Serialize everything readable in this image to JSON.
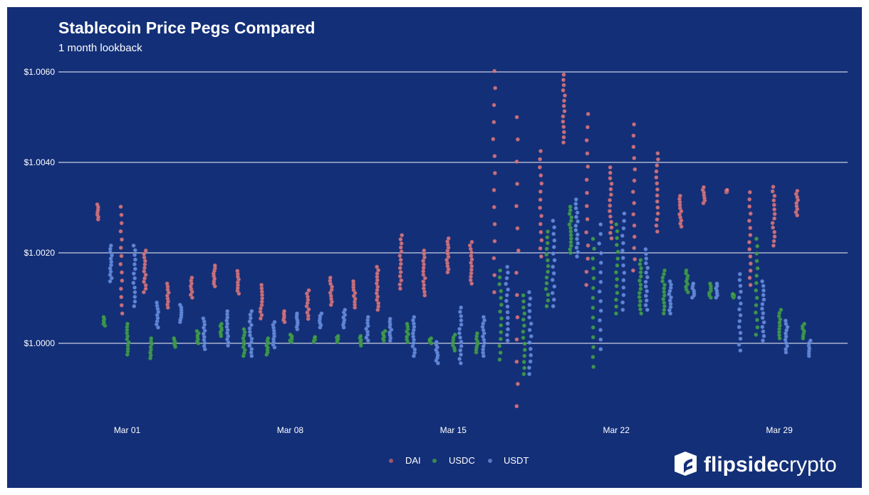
{
  "chart_data": {
    "type": "scatter",
    "title": "Stablecoin Price Pegs Compared",
    "subtitle": "1 month lookback",
    "xlabel": "",
    "ylabel": "",
    "ylim": [
      0.9984,
      1.0062
    ],
    "yticks": [
      {
        "value": 1.006,
        "label": "$1.0060"
      },
      {
        "value": 1.004,
        "label": "$1.0040"
      },
      {
        "value": 1.002,
        "label": "$1.0020"
      },
      {
        "value": 1.0,
        "label": "$1.0000"
      }
    ],
    "xticks": [
      {
        "day": 1,
        "label": "Mar 01"
      },
      {
        "day": 8,
        "label": "Mar 08"
      },
      {
        "day": 15,
        "label": "Mar 15"
      },
      {
        "day": 22,
        "label": "Mar 22"
      },
      {
        "day": 29,
        "label": "Mar 29"
      }
    ],
    "grid": "horizontal",
    "legend_position": "bottom",
    "days": [
      0,
      1,
      2,
      3,
      4,
      5,
      6,
      7,
      8,
      9,
      10,
      11,
      12,
      13,
      14,
      15,
      16,
      17,
      18,
      19,
      20,
      21,
      22,
      23,
      24,
      25,
      26,
      27,
      28,
      29,
      30
    ],
    "series": [
      {
        "name": "DAI",
        "color": "#e47c7f",
        "ranges": [
          [
            1.00274,
            1.00307
          ],
          [
            1.00066,
            1.00302
          ],
          [
            1.00113,
            1.00205
          ],
          [
            1.00079,
            1.00132
          ],
          [
            1.00101,
            1.00145
          ],
          [
            1.00126,
            1.00172
          ],
          [
            1.0011,
            1.0016
          ],
          [
            1.00055,
            1.00129
          ],
          [
            1.00047,
            1.00071
          ],
          [
            1.00054,
            1.00117
          ],
          [
            1.00085,
            1.00145
          ],
          [
            1.00079,
            1.00137
          ],
          [
            1.00074,
            1.00169
          ],
          [
            1.00121,
            1.00239
          ],
          [
            1.00106,
            1.00205
          ],
          [
            1.00157,
            1.00232
          ],
          [
            1.00132,
            1.00224
          ],
          [
            1.00113,
            1.00602
          ],
          [
            0.99861,
            1.005
          ],
          [
            1.00192,
            1.00425
          ],
          [
            1.00444,
            1.00594
          ],
          [
            1.00129,
            1.00507
          ],
          [
            1.00232,
            1.00389
          ],
          [
            1.00161,
            1.00484
          ],
          [
            1.00247,
            1.0042
          ],
          [
            1.00258,
            1.00326
          ],
          [
            1.0031,
            1.00345
          ],
          [
            1.00334,
            1.00339
          ],
          [
            1.00129,
            1.00334
          ],
          [
            1.00216,
            1.00346
          ],
          [
            1.00283,
            1.00337
          ]
        ]
      },
      {
        "name": "USDC",
        "color": "#45a651",
        "ranges": [
          [
            1.00039,
            1.00058
          ],
          [
            0.99975,
            1.00043
          ],
          [
            0.99967,
            1.00011
          ],
          [
            0.99992,
            1.00011
          ],
          [
            1.0,
            1.00027
          ],
          [
            1.00016,
            1.00043
          ],
          [
            0.99972,
            1.00031
          ],
          [
            0.99975,
            1.00011
          ],
          [
            1.00003,
            1.00019
          ],
          [
            1.00003,
            1.00014
          ],
          [
            1.00003,
            1.00016
          ],
          [
            0.99995,
            1.00016
          ],
          [
            1.00006,
            1.00027
          ],
          [
            1.00003,
            1.00043
          ],
          [
            1.0,
            1.00011
          ],
          [
            0.99984,
            1.00019
          ],
          [
            0.9998,
            1.00022
          ],
          [
            0.99964,
            1.00161
          ],
          [
            0.99932,
            1.00106
          ],
          [
            1.00082,
            1.00247
          ],
          [
            1.002,
            1.00302
          ],
          [
            0.99948,
            1.00231
          ],
          [
            1.00066,
            1.00263
          ],
          [
            1.00066,
            1.00184
          ],
          [
            1.00066,
            1.00161
          ],
          [
            1.00113,
            1.00161
          ],
          [
            1.00101,
            1.00132
          ],
          [
            1.00101,
            1.00109
          ],
          [
            1.00019,
            1.00231
          ],
          [
            1.00011,
            1.00074
          ],
          [
            1.00011,
            1.00043
          ]
        ]
      },
      {
        "name": "USDT",
        "color": "#6d95e4",
        "ranges": [
          [
            1.00137,
            1.00216
          ],
          [
            1.00082,
            1.00216
          ],
          [
            1.00035,
            1.0009
          ],
          [
            1.00047,
            1.00085
          ],
          [
            0.99987,
            1.00055
          ],
          [
            0.99995,
            1.00071
          ],
          [
            0.99972,
            1.00071
          ],
          [
            0.99991,
            1.00047
          ],
          [
            1.00031,
            1.00066
          ],
          [
            1.00035,
            1.00066
          ],
          [
            1.00035,
            1.00074
          ],
          [
            1.00006,
            1.00058
          ],
          [
            1.00006,
            1.00054
          ],
          [
            0.99972,
            1.00058
          ],
          [
            0.99956,
            1.00003
          ],
          [
            0.99956,
            1.00079
          ],
          [
            0.99972,
            1.00058
          ],
          [
            1.00006,
            1.00169
          ],
          [
            0.99932,
            1.00113
          ],
          [
            1.00082,
            1.00271
          ],
          [
            1.00192,
            1.00318
          ],
          [
            0.99987,
            1.00263
          ],
          [
            1.00074,
            1.00287
          ],
          [
            1.00074,
            1.00208
          ],
          [
            1.00066,
            1.00137
          ],
          [
            1.00101,
            1.00132
          ],
          [
            1.00101,
            1.00132
          ],
          [
            0.99984,
            1.00153
          ],
          [
            1.00006,
            1.00137
          ],
          [
            0.9998,
            1.0005
          ],
          [
            0.99972,
            1.00006
          ]
        ]
      }
    ]
  },
  "legend": {
    "dai": "DAI",
    "usdc": "USDC",
    "usdt": "USDT"
  },
  "branding": {
    "logo_bold": "flipside",
    "logo_light": "crypto"
  },
  "colors": {
    "background": "#132f78",
    "grid": "#c9cfe0"
  }
}
